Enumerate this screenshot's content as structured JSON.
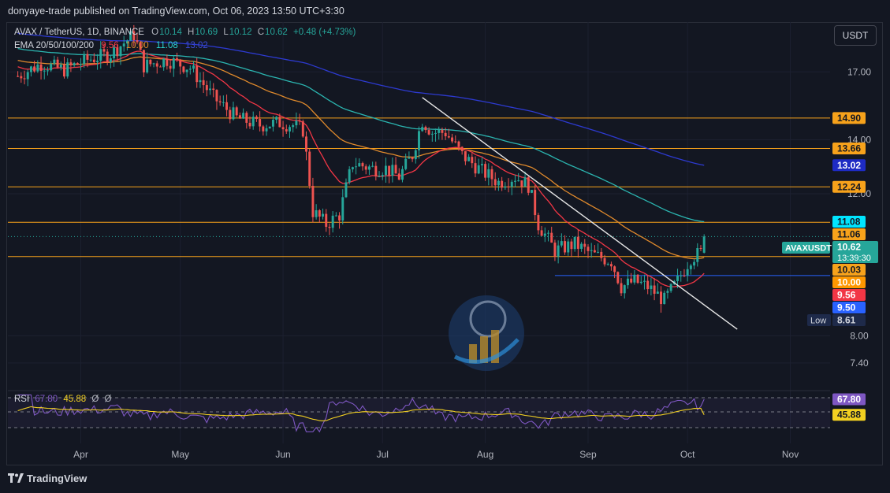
{
  "header": {
    "publisher_line": "donyaye-trade published on TradingView.com, Oct 06, 2023 13:50 UTC+3:30"
  },
  "legend": {
    "symbol": "AVAX / TetherUS, 1D, BINANCE",
    "o_label": "O",
    "o_value": "10.14",
    "h_label": "H",
    "h_value": "10.69",
    "l_label": "L",
    "l_value": "10.12",
    "c_label": "C",
    "c_value": "10.62",
    "change": "+0.48 (+4.73%)",
    "ema_label": "EMA 20/50/100/200",
    "ema20": "9.56",
    "ema50": "10.00",
    "ema100": "11.08",
    "ema200": "13.02",
    "rsi_label": "RSI",
    "rsi_value": "67.80",
    "rsi_ma": "45.88",
    "rsi_extra1": "Ø",
    "rsi_extra2": "Ø"
  },
  "currency_button": "USDT",
  "footer": {
    "brand": "TradingView"
  },
  "colors": {
    "background": "#131722",
    "up": "#26a69a",
    "down": "#ef5350",
    "ema20": "#f23645",
    "ema50": "#e08a2c",
    "ema100": "#2bb5b0",
    "ema200": "#2d3ad0",
    "hline": "#f7a21b",
    "rsi": "#7e57c2",
    "rsi_ma": "#f2d021"
  },
  "chart_data": {
    "type": "candlestick",
    "symbol": "AVAXUSDT",
    "interval": "1D",
    "x_axis": {
      "labels": [
        "Apr",
        "May",
        "Jun",
        "Jul",
        "Aug",
        "Sep",
        "Oct",
        "Nov"
      ]
    },
    "y_axis": {
      "scale": "log",
      "range": [
        6.9,
        19.6
      ],
      "tick_labels": [
        "17.00",
        "14.00",
        "12.00",
        "8.00",
        "7.40"
      ]
    },
    "horizontal_levels": [
      14.9,
      13.66,
      12.24,
      11.06,
      10.03
    ],
    "support_line": 9.5,
    "trendline": {
      "from": {
        "x": "Jul 13",
        "y": 15.8
      },
      "to": {
        "x": "Oct 16",
        "y": 8.15
      }
    },
    "price_labels": [
      {
        "text": "14.90",
        "value": 14.9,
        "kind": "level"
      },
      {
        "text": "13.66",
        "value": 13.66,
        "kind": "level"
      },
      {
        "text": "13.02",
        "value": 13.02,
        "kind": "ema200"
      },
      {
        "text": "12.24",
        "value": 12.24,
        "kind": "level"
      },
      {
        "text": "11.08",
        "value": 11.08,
        "kind": "ema100"
      },
      {
        "text": "11.06",
        "value": 11.06,
        "kind": "level"
      },
      {
        "text": "10.62",
        "value": 10.62,
        "kind": "last",
        "name": "AVAXUSDT",
        "countdown": "13:39:30"
      },
      {
        "text": "10.03",
        "value": 10.03,
        "kind": "level"
      },
      {
        "text": "10.00",
        "value": 10.0,
        "kind": "ema50"
      },
      {
        "text": "9.56",
        "value": 9.56,
        "kind": "ema20"
      },
      {
        "text": "9.50",
        "value": 9.5,
        "kind": "support"
      },
      {
        "text": "8.61",
        "value": 8.61,
        "kind": "low",
        "name": "Low"
      }
    ],
    "price_path": [
      [
        "Mar 13",
        16.8
      ],
      [
        "Mar 20",
        17.4
      ],
      [
        "Mar 27",
        17.1
      ],
      [
        "Apr 3",
        17.6
      ],
      [
        "Apr 10",
        17.9
      ],
      [
        "Apr 17",
        18.9
      ],
      [
        "Apr 20",
        17.3
      ],
      [
        "Apr 27",
        17.6
      ],
      [
        "May 4",
        17.2
      ],
      [
        "May 11",
        15.8
      ],
      [
        "May 18",
        14.9
      ],
      [
        "May 25",
        14.6
      ],
      [
        "May 31",
        14.7
      ],
      [
        "Jun 4",
        14.6
      ],
      [
        "Jun 7",
        14.4
      ],
      [
        "Jun 10",
        11.4
      ],
      [
        "Jun 14",
        11.0
      ],
      [
        "Jun 18",
        11.3
      ],
      [
        "Jun 22",
        13.1
      ],
      [
        "Jun 28",
        12.9
      ],
      [
        "Jul 2",
        12.9
      ],
      [
        "Jul 6",
        12.6
      ],
      [
        "Jul 10",
        13.4
      ],
      [
        "Jul 13",
        14.8
      ],
      [
        "Jul 16",
        14.3
      ],
      [
        "Jul 20",
        14.3
      ],
      [
        "Jul 25",
        13.4
      ],
      [
        "Jul 31",
        12.8
      ],
      [
        "Aug 5",
        12.4
      ],
      [
        "Aug 10",
        12.6
      ],
      [
        "Aug 14",
        12.3
      ],
      [
        "Aug 17",
        11.0
      ],
      [
        "Aug 22",
        10.2
      ],
      [
        "Aug 28",
        10.4
      ],
      [
        "Sep 2",
        10.1
      ],
      [
        "Sep 8",
        9.9
      ],
      [
        "Sep 11",
        9.2
      ],
      [
        "Sep 15",
        9.35
      ],
      [
        "Sep 19",
        9.2
      ],
      [
        "Sep 24",
        8.85
      ],
      [
        "Sep 28",
        9.35
      ],
      [
        "Oct 2",
        10.0
      ],
      [
        "Oct 5",
        10.14
      ],
      [
        "Oct 6",
        10.62
      ]
    ],
    "ema_levels_at_last": {
      "ema20": 9.56,
      "ema50": 10.0,
      "ema100": 11.08,
      "ema200": 13.02
    },
    "rsi": {
      "value": 67.8,
      "ma": 45.88,
      "axis_labels": [
        "67.80",
        "45.88"
      ]
    }
  }
}
